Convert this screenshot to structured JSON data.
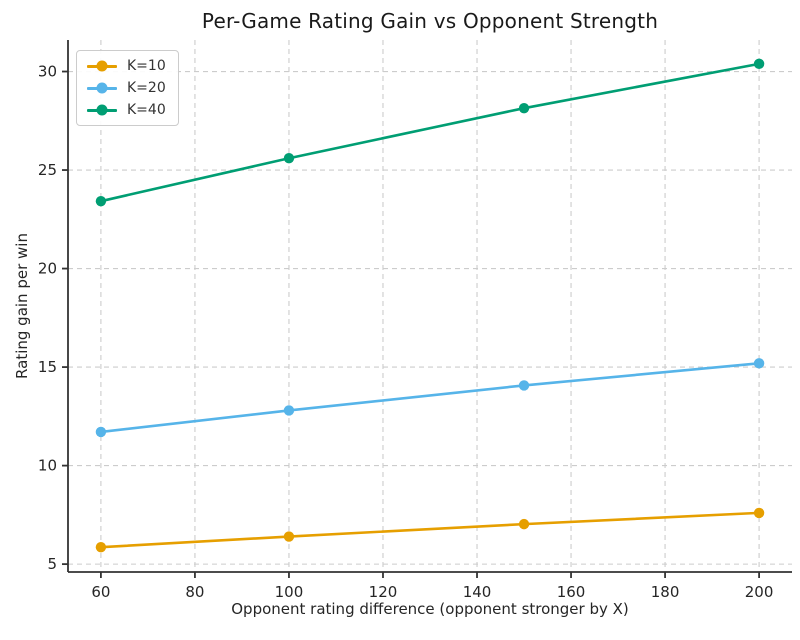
{
  "chart_data": {
    "type": "line",
    "title": "Per-Game Rating Gain vs Opponent Strength",
    "xlabel": "Opponent rating difference (opponent stronger by X)",
    "ylabel": "Rating gain per win",
    "x": [
      60,
      100,
      150,
      200
    ],
    "series": [
      {
        "name": "K=10",
        "color": "#E69F00",
        "values": [
          5.86,
          6.4,
          7.03,
          7.6
        ]
      },
      {
        "name": "K=20",
        "color": "#56B4E9",
        "values": [
          11.71,
          12.8,
          14.07,
          15.19
        ]
      },
      {
        "name": "K=40",
        "color": "#009E73",
        "values": [
          23.42,
          25.6,
          28.14,
          30.39
        ]
      }
    ],
    "xticks": [
      60,
      80,
      100,
      120,
      140,
      160,
      180,
      200
    ],
    "yticks": [
      5,
      10,
      15,
      20,
      25,
      30
    ],
    "xlim": [
      53,
      207
    ],
    "ylim": [
      4.6,
      31.6
    ],
    "grid": "dashed",
    "grid_color": "#cccccc",
    "axis_color": "#333333",
    "legend_position": "upper left"
  }
}
